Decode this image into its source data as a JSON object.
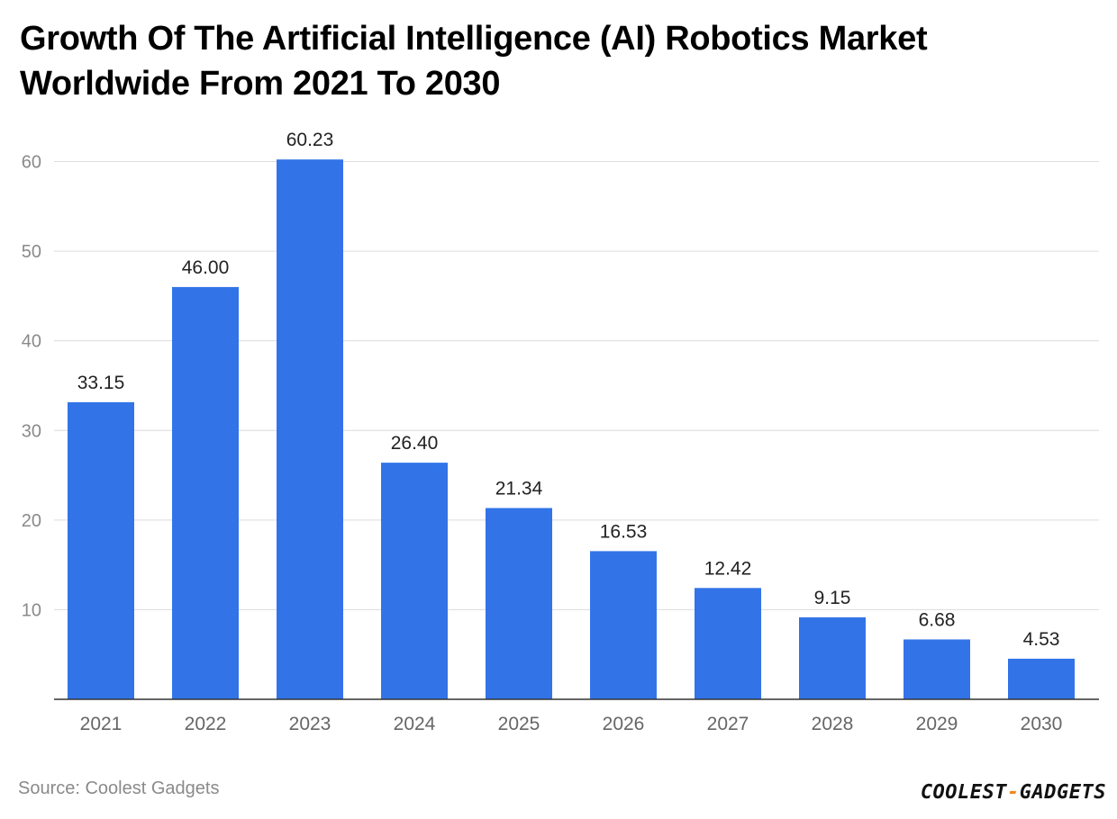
{
  "chart_data": {
    "type": "bar",
    "title": "Growth Of The Artificial Intelligence (AI) Robotics Market Worldwide From 2021 To 2030",
    "categories": [
      "2021",
      "2022",
      "2023",
      "2024",
      "2025",
      "2026",
      "2027",
      "2028",
      "2029",
      "2030"
    ],
    "values": [
      33.15,
      46.0,
      60.23,
      26.4,
      21.34,
      16.53,
      12.42,
      9.15,
      6.68,
      4.53
    ],
    "value_labels": [
      "33.15",
      "46.00",
      "60.23",
      "26.40",
      "21.34",
      "16.53",
      "12.42",
      "9.15",
      "6.68",
      "4.53"
    ],
    "xlabel": "",
    "ylabel": "",
    "ylim": [
      0,
      60
    ],
    "yticks": [
      10,
      20,
      30,
      40,
      50,
      60
    ],
    "grid": true,
    "legend": "none",
    "bar_color": "#3274e8"
  },
  "footer": {
    "source": "Source: Coolest Gadgets",
    "logo_part1": "COOLEST",
    "logo_dash": "-",
    "logo_part2": "GADGETS",
    "logo_dash_color": "#f08a1c"
  }
}
